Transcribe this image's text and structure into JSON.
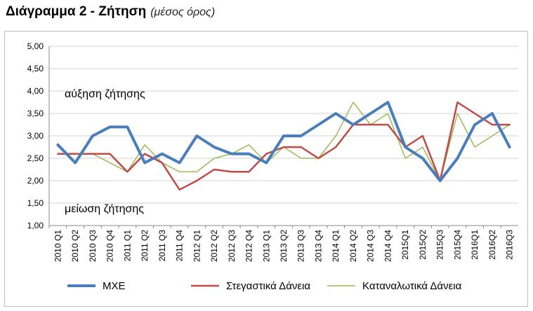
{
  "title": "Διάγραμμα 2 - Ζήτηση",
  "subtitle": "(μέσος όρος)",
  "chart_data": {
    "type": "line",
    "title": "Διάγραμμα 2 - Ζήτηση",
    "subtitle": "(μέσος όρος)",
    "ylim": [
      1.0,
      5.0
    ],
    "y_ticks": [
      "1,00",
      "1,50",
      "2,00",
      "2,50",
      "3,00",
      "3,50",
      "4,00",
      "4,50",
      "5,00"
    ],
    "grid": true,
    "legend_position": "bottom",
    "categories": [
      "2010 Q1",
      "2010 Q2",
      "2010 Q3",
      "2010 Q4",
      "2011 Q1",
      "2011 Q2",
      "2011 Q3",
      "2011 Q4",
      "2012 Q1",
      "2012 Q2",
      "2012 Q3",
      "2012 Q4",
      "2013 Q1",
      "2013 Q2",
      "2013 Q3",
      "2013 Q4",
      "2014 Q1",
      "2014 Q2",
      "2014 Q3",
      "2014 Q4",
      "2015Q1",
      "2015Q2",
      "2015Q3",
      "2015Q4",
      "2016Q1",
      "2016Q2",
      "2016Q3"
    ],
    "series": [
      {
        "name": "ΜΧΕ",
        "color": "#4a7ebb",
        "width": 4,
        "values": [
          2.8,
          2.4,
          3.0,
          3.2,
          3.2,
          2.4,
          2.6,
          2.4,
          3.0,
          2.75,
          2.6,
          2.6,
          2.4,
          3.0,
          3.0,
          3.25,
          3.5,
          3.25,
          3.5,
          3.75,
          2.75,
          2.5,
          2.0,
          2.5,
          3.25,
          3.5,
          2.75
        ]
      },
      {
        "name": "Στεγαστικά Δάνεια",
        "color": "#be4b48",
        "width": 2.5,
        "values": [
          2.6,
          2.6,
          2.6,
          2.6,
          2.2,
          2.6,
          2.4,
          1.8,
          2.0,
          2.25,
          2.2,
          2.2,
          2.6,
          2.75,
          2.75,
          2.5,
          2.75,
          3.25,
          3.25,
          3.25,
          2.75,
          3.0,
          2.0,
          3.75,
          3.5,
          3.25,
          3.25
        ]
      },
      {
        "name": "Καταναλωτικά Δάνεια",
        "color": "#9bbb59",
        "width": 1.5,
        "values": [
          2.6,
          2.6,
          2.6,
          2.4,
          2.2,
          2.8,
          2.4,
          2.2,
          2.2,
          2.5,
          2.6,
          2.8,
          2.4,
          2.75,
          2.5,
          2.5,
          3.0,
          3.75,
          3.25,
          3.5,
          2.5,
          2.75,
          2.0,
          3.5,
          2.75,
          3.0,
          3.25
        ]
      }
    ],
    "annotations": [
      "αύξηση ζήτησης",
      "μείωση ζήτησης"
    ]
  }
}
